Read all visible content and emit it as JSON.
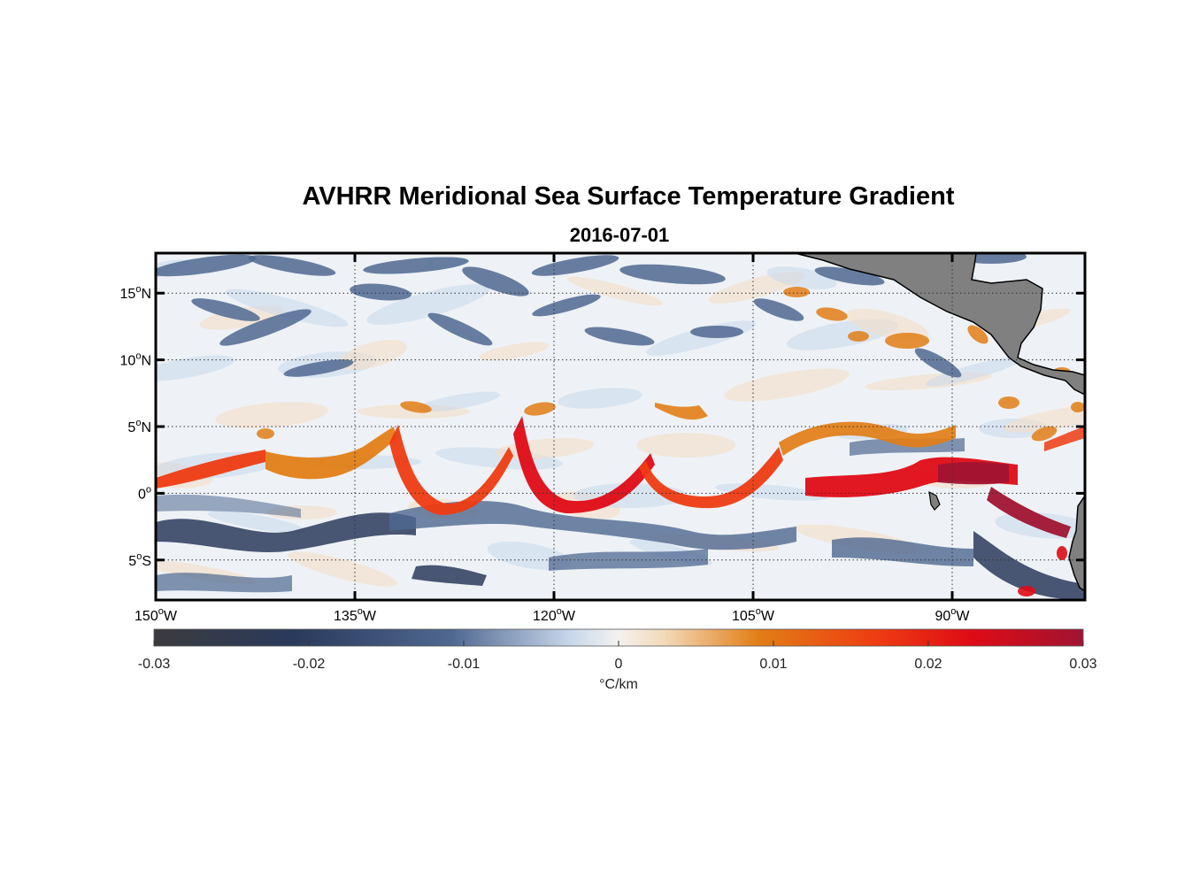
{
  "title": "AVHRR Meridional Sea Surface Temperature Gradient",
  "subtitle": "2016-07-01",
  "map": {
    "lon_range": [
      -150,
      -80
    ],
    "lat_range": [
      -8,
      18
    ],
    "lon_ticks": [
      {
        "value": -150,
        "deg": "150",
        "hemi": "W"
      },
      {
        "value": -135,
        "deg": "135",
        "hemi": "W"
      },
      {
        "value": -120,
        "deg": "120",
        "hemi": "W"
      },
      {
        "value": -105,
        "deg": "105",
        "hemi": "W"
      },
      {
        "value": -90,
        "deg": "90",
        "hemi": "W"
      }
    ],
    "lat_ticks": [
      {
        "value": 15,
        "deg": "15",
        "hemi": "N"
      },
      {
        "value": 10,
        "deg": "10",
        "hemi": "N"
      },
      {
        "value": 5,
        "deg": "5",
        "hemi": "N"
      },
      {
        "value": 0,
        "deg": "0",
        "hemi": ""
      },
      {
        "value": -5,
        "deg": "5",
        "hemi": "S"
      }
    ],
    "gridlines": "dotted",
    "land_color": "#808080"
  },
  "colorbar": {
    "min": -0.03,
    "max": 0.03,
    "ticks": [
      "-0.03",
      "-0.02",
      "-0.01",
      "0",
      "0.01",
      "0.02",
      "0.03"
    ],
    "tick_values": [
      -0.03,
      -0.02,
      -0.01,
      0,
      0.01,
      0.02,
      0.03
    ],
    "units": "°C/km",
    "colors": [
      "#3b3b3e",
      "#2a3a5c",
      "#4f6891",
      "#c9d8ec",
      "#f4f2ee",
      "#f3d9b8",
      "#e27e16",
      "#ee3b12",
      "#df0b16",
      "#a01432"
    ]
  }
}
